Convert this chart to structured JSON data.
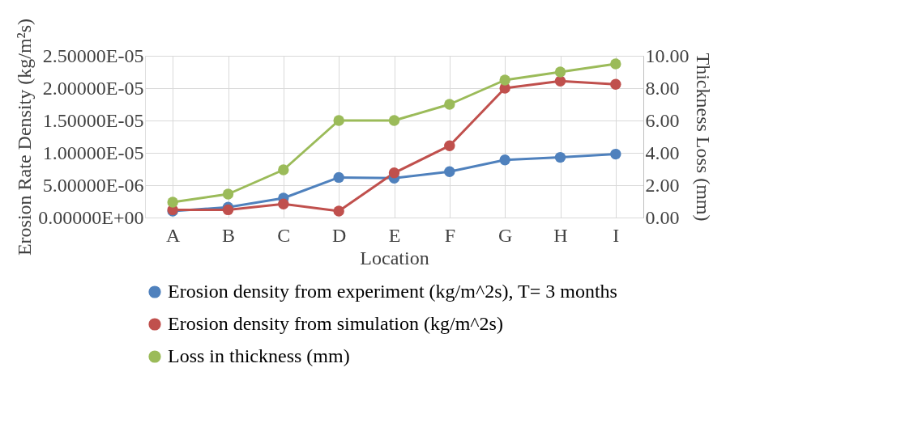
{
  "chart_data": {
    "type": "line",
    "xlabel": "Location",
    "ylabel": "Erosion Rate Density (kg/m²s)",
    "y2label": "Thickness Loss (mm)",
    "categories": [
      "A",
      "B",
      "C",
      "D",
      "E",
      "F",
      "G",
      "H",
      "I"
    ],
    "series": [
      {
        "name": "Erosion density from experiment (kg/m^2s), T= 3 months",
        "color": "#4f81bd",
        "values": [
          1e-06,
          1.6e-06,
          3e-06,
          6.2e-06,
          6.1e-06,
          7.1e-06,
          8.9e-06,
          9.3e-06,
          9.8e-06
        ]
      },
      {
        "name": "Erosion density from simulation (kg/m^2s)",
        "color": "#c0504d",
        "values": [
          1.2e-06,
          1.2e-06,
          2.1e-06,
          1e-06,
          6.9e-06,
          1.11e-05,
          2e-05,
          2.11e-05,
          2.06e-05
        ]
      },
      {
        "name": "Loss in thickness (mm)",
        "color": "#9bbb59",
        "axis": "y2",
        "values": [
          0.95,
          1.45,
          2.95,
          6.0,
          6.0,
          7.0,
          8.5,
          9.0,
          9.5
        ]
      }
    ],
    "ylim": [
      0,
      2.5e-05
    ],
    "yticks": [
      {
        "value": 0,
        "label": "0.00000E+00"
      },
      {
        "value": 5e-06,
        "label": "5.00000E-06"
      },
      {
        "value": 1e-05,
        "label": "1.00000E-05"
      },
      {
        "value": 1.5e-05,
        "label": "1.50000E-05"
      },
      {
        "value": 2e-05,
        "label": "2.00000E-05"
      },
      {
        "value": 2.5e-05,
        "label": "2.50000E-05"
      }
    ],
    "y2lim": [
      0,
      10
    ],
    "y2ticks": [
      {
        "value": 0,
        "label": "0.00"
      },
      {
        "value": 2,
        "label": "2.00"
      },
      {
        "value": 4,
        "label": "4.00"
      },
      {
        "value": 6,
        "label": "6.00"
      },
      {
        "value": 8,
        "label": "8.00"
      },
      {
        "value": 10,
        "label": "10.00"
      }
    ],
    "grid": true,
    "legend": "bottom",
    "marker": "circle",
    "line_style": "solid"
  }
}
